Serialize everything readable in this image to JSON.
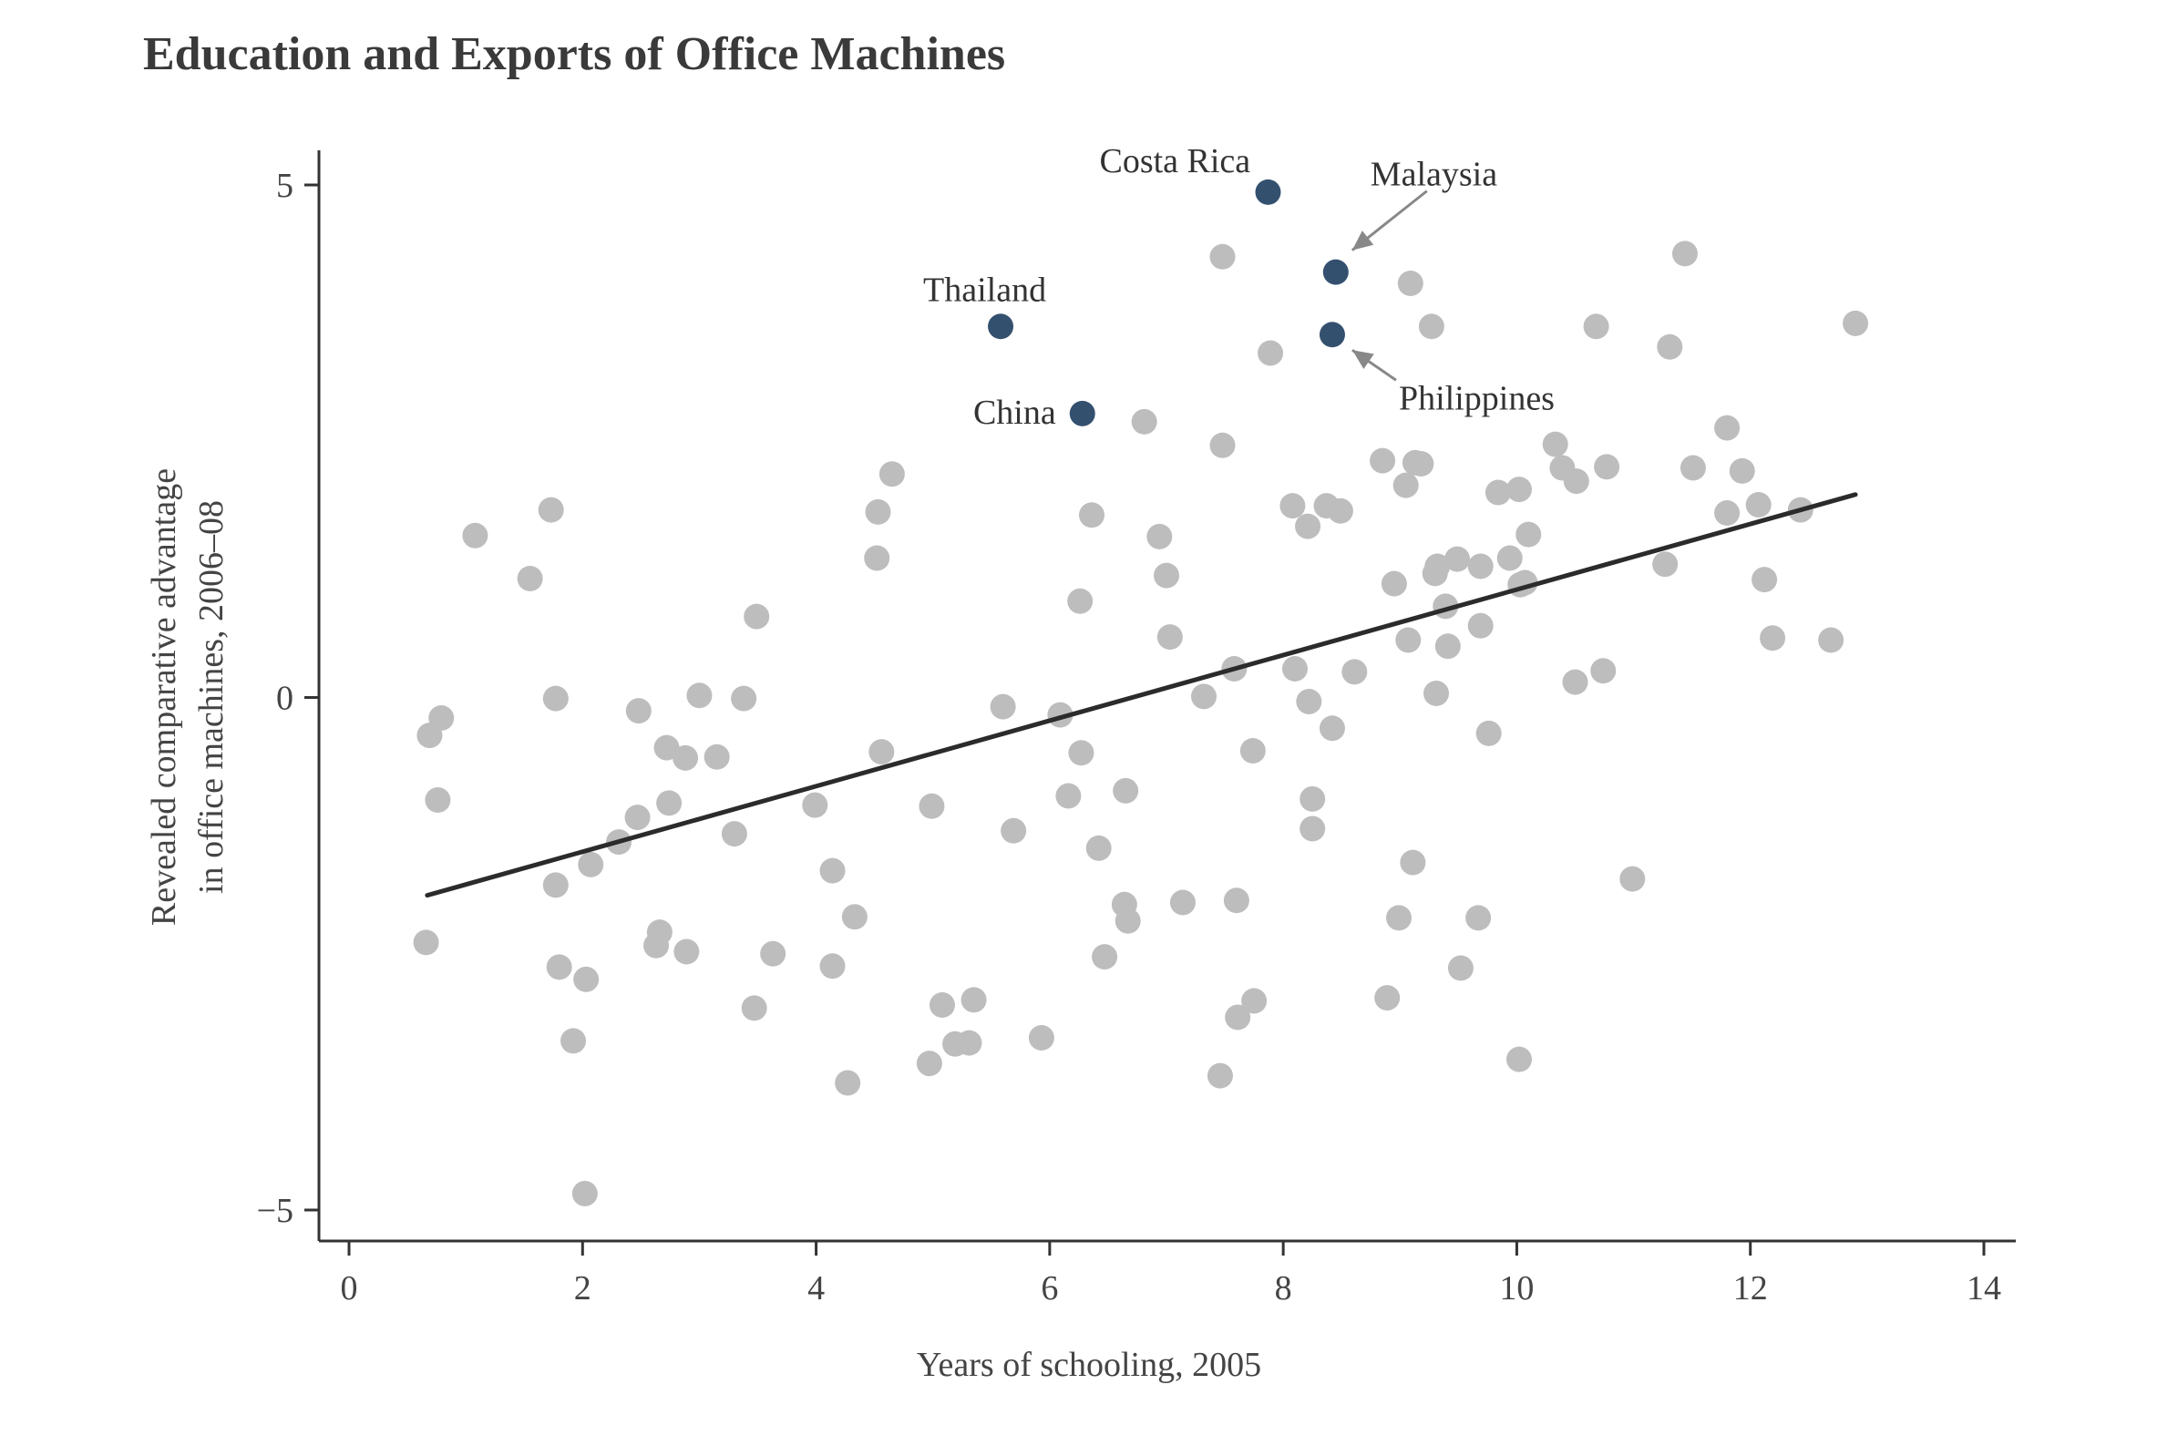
{
  "chart_data": {
    "type": "scatter",
    "title": "Education and Exports of Office Machines",
    "xlabel": "Years of schooling, 2005",
    "ylabel": [
      "Revealed comparative advantage",
      "in office machines, 2006–08"
    ],
    "xlim": [
      0,
      14
    ],
    "ylim": [
      -5,
      5
    ],
    "xticks": [
      {
        "value": 0,
        "label": "0"
      },
      {
        "value": 2,
        "label": "2"
      },
      {
        "value": 4,
        "label": "4"
      },
      {
        "value": 6,
        "label": "6"
      },
      {
        "value": 8,
        "label": "8"
      },
      {
        "value": 10,
        "label": "10"
      },
      {
        "value": 12,
        "label": "12"
      },
      {
        "value": 14,
        "label": "14"
      }
    ],
    "yticks": [
      {
        "value": 5,
        "label": "5"
      },
      {
        "value": 0,
        "label": "0"
      },
      {
        "value": -5,
        "label": "−5"
      }
    ],
    "grid": false,
    "colors": {
      "points": "#bdbdbd",
      "highlight": "#34506f",
      "trend": "#2b2b2b",
      "arrow": "#888888",
      "axis": "#333333"
    },
    "trend_line": {
      "x": [
        0.67,
        12.9
      ],
      "y": [
        -1.93,
        1.98
      ]
    },
    "highlighted": [
      {
        "label": "Costa Rica",
        "x": 7.87,
        "y": 4.93
      },
      {
        "label": "Malaysia",
        "x": 8.45,
        "y": 4.15
      },
      {
        "label": "Thailand",
        "x": 5.58,
        "y": 3.62
      },
      {
        "label": "Philippines",
        "x": 8.42,
        "y": 3.54
      },
      {
        "label": "China",
        "x": 6.28,
        "y": 2.77
      }
    ],
    "points": [
      [
        0.66,
        -2.39
      ],
      [
        0.69,
        -0.37
      ],
      [
        0.76,
        -1.0
      ],
      [
        0.79,
        -0.2
      ],
      [
        1.08,
        1.58
      ],
      [
        1.55,
        1.16
      ],
      [
        1.73,
        1.83
      ],
      [
        1.77,
        -0.01
      ],
      [
        1.77,
        -1.83
      ],
      [
        1.8,
        -2.63
      ],
      [
        1.92,
        -3.35
      ],
      [
        2.02,
        -4.84
      ],
      [
        2.03,
        -2.75
      ],
      [
        2.07,
        -1.63
      ],
      [
        2.31,
        -1.41
      ],
      [
        2.47,
        -1.17
      ],
      [
        2.48,
        -0.13
      ],
      [
        2.63,
        -2.42
      ],
      [
        2.66,
        -2.29
      ],
      [
        2.72,
        -0.49
      ],
      [
        2.74,
        -1.03
      ],
      [
        2.88,
        -0.59
      ],
      [
        2.89,
        -2.48
      ],
      [
        3.0,
        0.02
      ],
      [
        3.15,
        -0.58
      ],
      [
        3.3,
        -1.33
      ],
      [
        3.38,
        -0.01
      ],
      [
        3.47,
        -3.03
      ],
      [
        3.49,
        0.79
      ],
      [
        3.63,
        -2.5
      ],
      [
        3.99,
        -1.05
      ],
      [
        4.14,
        -1.69
      ],
      [
        4.14,
        -2.62
      ],
      [
        4.27,
        -3.76
      ],
      [
        4.33,
        -2.14
      ],
      [
        4.52,
        1.36
      ],
      [
        4.53,
        1.81
      ],
      [
        4.56,
        -0.53
      ],
      [
        4.65,
        2.18
      ],
      [
        4.97,
        -3.57
      ],
      [
        4.99,
        -1.06
      ],
      [
        5.08,
        -3.0
      ],
      [
        5.19,
        -3.38
      ],
      [
        5.31,
        -3.37
      ],
      [
        5.35,
        -2.95
      ],
      [
        5.6,
        -0.09
      ],
      [
        5.69,
        -1.3
      ],
      [
        5.93,
        -3.32
      ],
      [
        6.09,
        -0.17
      ],
      [
        6.16,
        -0.96
      ],
      [
        6.26,
        0.94
      ],
      [
        6.27,
        -0.54
      ],
      [
        6.36,
        1.78
      ],
      [
        6.42,
        -1.47
      ],
      [
        6.47,
        -2.53
      ],
      [
        6.64,
        -2.02
      ],
      [
        6.65,
        -0.91
      ],
      [
        6.67,
        -2.18
      ],
      [
        6.81,
        2.69
      ],
      [
        6.94,
        1.57
      ],
      [
        7.0,
        1.19
      ],
      [
        7.03,
        0.59
      ],
      [
        7.14,
        -2.0
      ],
      [
        7.32,
        0.01
      ],
      [
        7.46,
        -3.69
      ],
      [
        7.48,
        2.46
      ],
      [
        7.48,
        4.3
      ],
      [
        7.58,
        0.28
      ],
      [
        7.6,
        -1.98
      ],
      [
        7.61,
        -3.12
      ],
      [
        7.74,
        -0.52
      ],
      [
        7.75,
        -2.96
      ],
      [
        7.89,
        3.36
      ],
      [
        8.08,
        1.87
      ],
      [
        8.1,
        0.28
      ],
      [
        8.21,
        1.67
      ],
      [
        8.22,
        -0.04
      ],
      [
        8.25,
        -0.99
      ],
      [
        8.25,
        -1.28
      ],
      [
        8.37,
        1.87
      ],
      [
        8.42,
        -0.3
      ],
      [
        8.49,
        1.82
      ],
      [
        8.61,
        0.25
      ],
      [
        8.85,
        2.31
      ],
      [
        8.89,
        -2.93
      ],
      [
        8.95,
        1.11
      ],
      [
        8.99,
        -2.15
      ],
      [
        9.05,
        2.07
      ],
      [
        9.07,
        0.56
      ],
      [
        9.09,
        4.04
      ],
      [
        9.11,
        -1.61
      ],
      [
        9.13,
        2.29
      ],
      [
        9.18,
        2.28
      ],
      [
        9.27,
        3.62
      ],
      [
        9.3,
        1.21
      ],
      [
        9.31,
        0.04
      ],
      [
        9.32,
        1.28
      ],
      [
        9.39,
        0.89
      ],
      [
        9.41,
        0.5
      ],
      [
        9.49,
        1.35
      ],
      [
        9.52,
        -2.64
      ],
      [
        9.67,
        -2.15
      ],
      [
        9.69,
        1.28
      ],
      [
        9.69,
        0.7
      ],
      [
        9.76,
        -0.35
      ],
      [
        9.84,
        2.0
      ],
      [
        9.94,
        1.36
      ],
      [
        10.02,
        -3.53
      ],
      [
        10.02,
        2.03
      ],
      [
        10.03,
        1.1
      ],
      [
        10.07,
        1.12
      ],
      [
        10.1,
        1.59
      ],
      [
        10.33,
        2.47
      ],
      [
        10.39,
        2.24
      ],
      [
        10.5,
        0.15
      ],
      [
        10.51,
        2.11
      ],
      [
        10.68,
        3.62
      ],
      [
        10.74,
        0.26
      ],
      [
        10.77,
        2.25
      ],
      [
        10.99,
        -1.77
      ],
      [
        11.27,
        1.3
      ],
      [
        11.31,
        3.42
      ],
      [
        11.44,
        4.33
      ],
      [
        11.51,
        2.24
      ],
      [
        11.8,
        1.8
      ],
      [
        11.8,
        2.63
      ],
      [
        11.93,
        2.21
      ],
      [
        12.07,
        1.88
      ],
      [
        12.12,
        1.15
      ],
      [
        12.19,
        0.58
      ],
      [
        12.43,
        1.83
      ],
      [
        12.69,
        0.56
      ],
      [
        12.9,
        3.65
      ]
    ]
  }
}
